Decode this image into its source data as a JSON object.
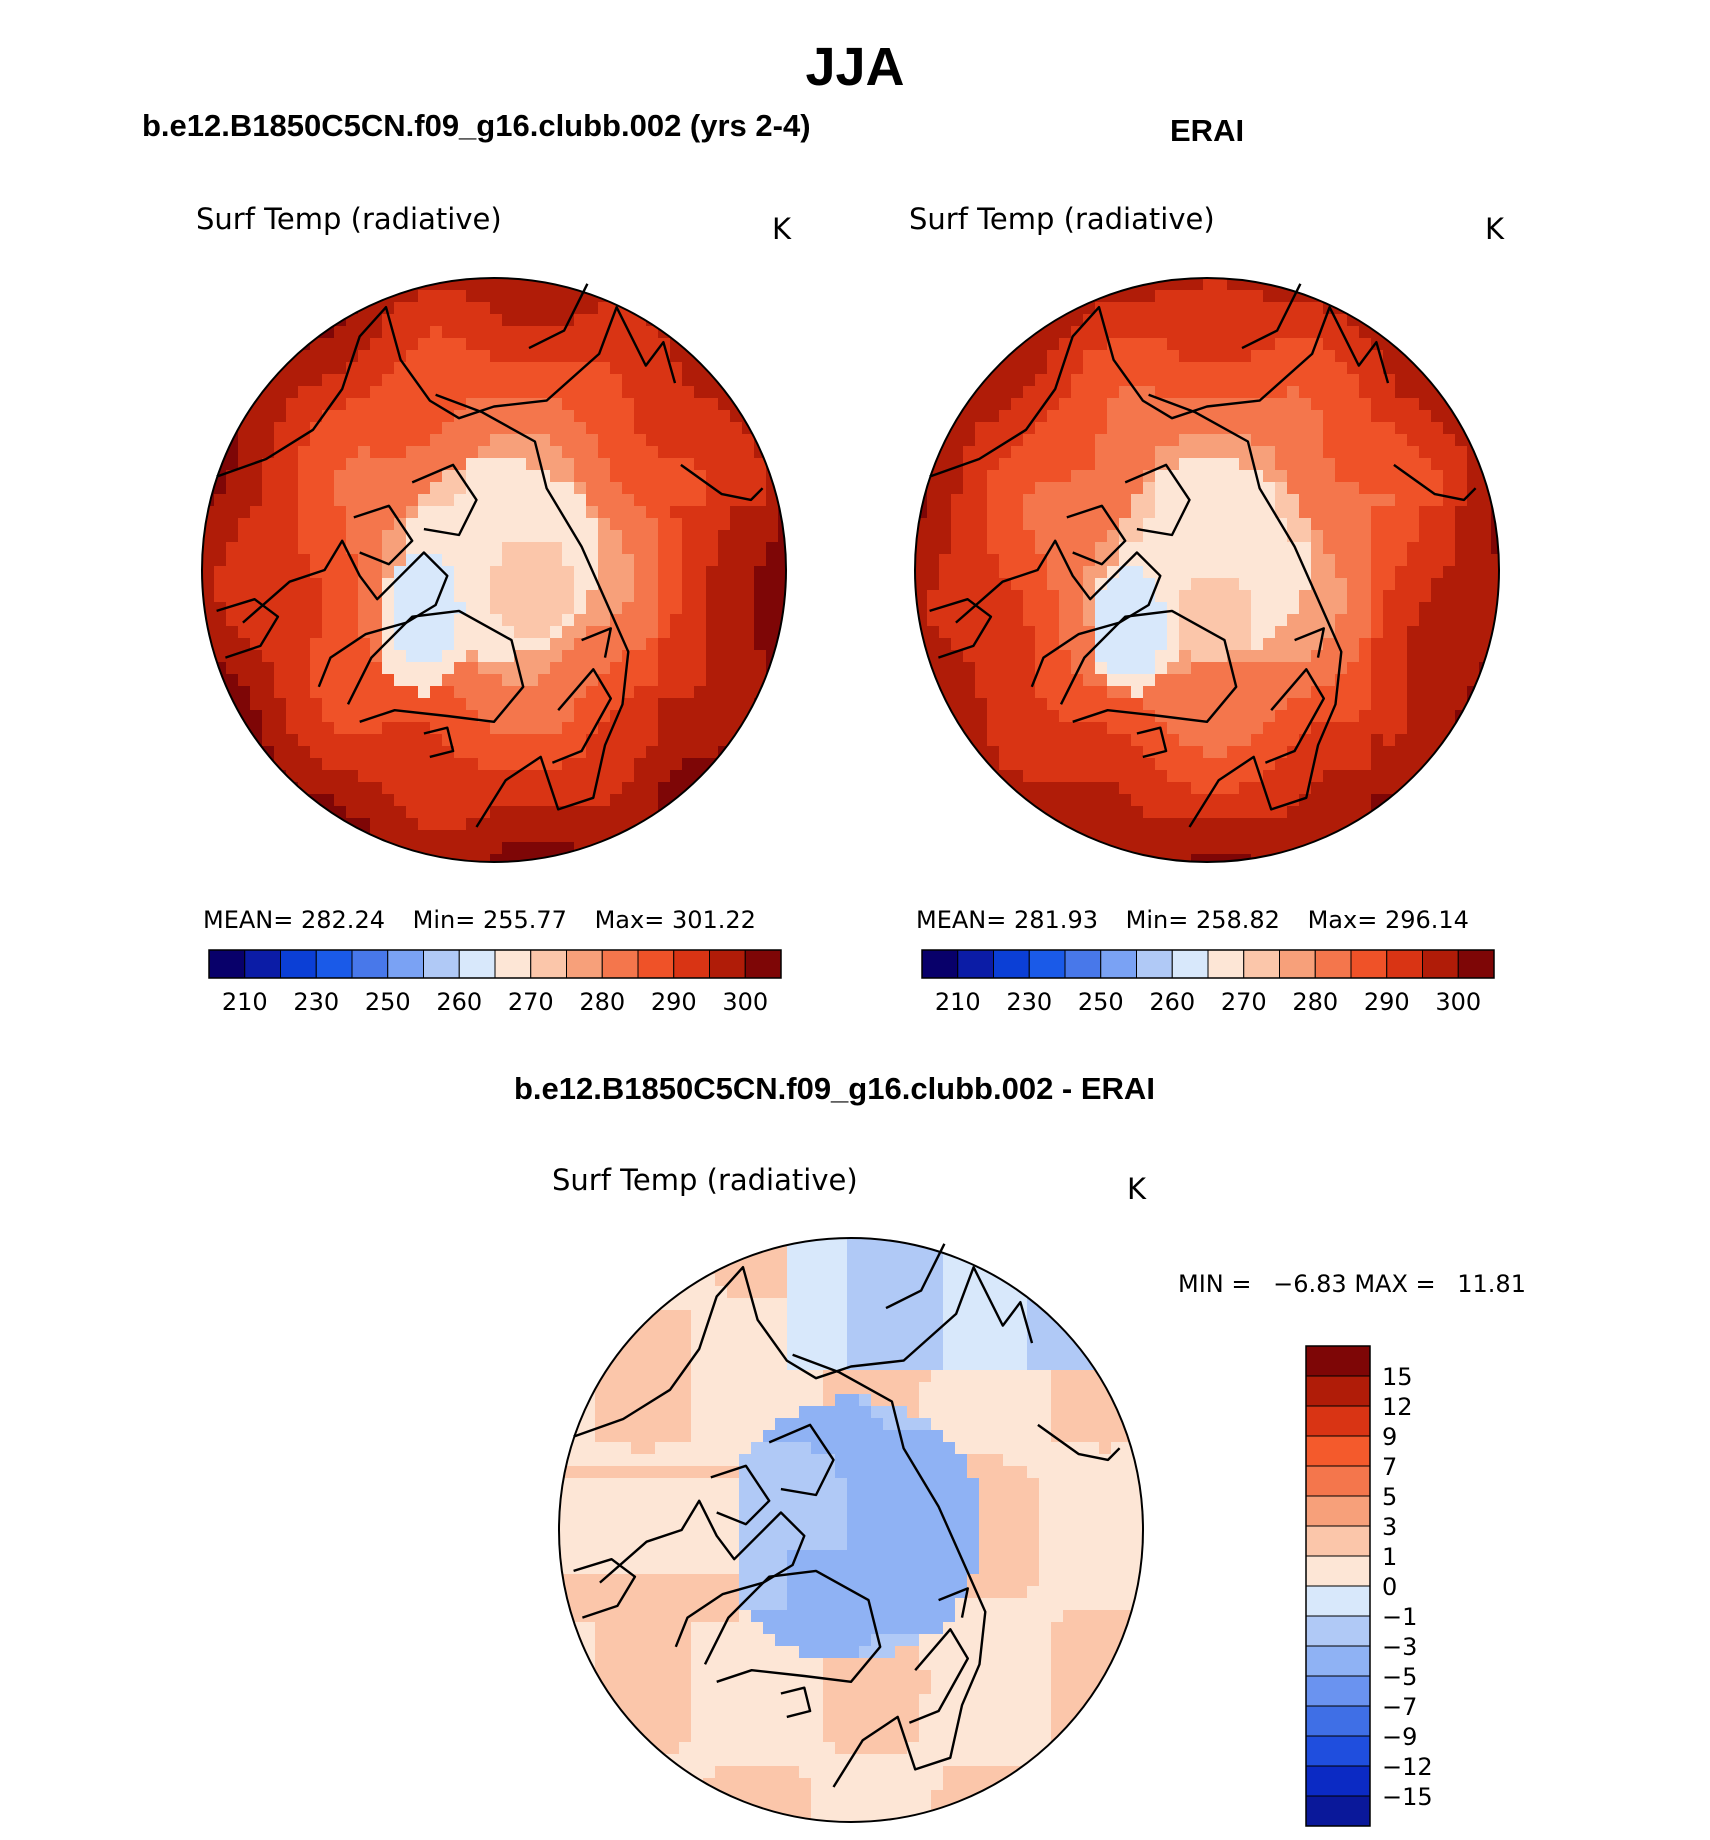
{
  "page_title": "JJA",
  "colors": {
    "model_levels": [
      "#08006a",
      "#0b1ca6",
      "#0b3fd6",
      "#1a5ae8",
      "#4878ea",
      "#7aa2f4",
      "#b0c9f6",
      "#d8e8fb",
      "#fde6d6",
      "#fbc6aa",
      "#f7a07a",
      "#f4764c",
      "#ef5228",
      "#d93414",
      "#b01c08",
      "#7e0606"
    ],
    "diff_levels": [
      "#7e0606",
      "#b01c08",
      "#d93414",
      "#f45a2c",
      "#f4764c",
      "#f7a07a",
      "#fbc6aa",
      "#fde6d6",
      "#d8e8fb",
      "#b0c9f6",
      "#8fb2f4",
      "#6a93f0",
      "#3f6fe6",
      "#1f4ede",
      "#0b2ac4",
      "#0a189a",
      "#08006a"
    ],
    "coast": "#000000"
  },
  "chart_data": [
    {
      "type": "heatmap",
      "projection": "north-polar-stereographic",
      "case_title": "b.e12.B1850C5CN.f09_g16.clubb.002 (yrs 2-4)",
      "variable": "Surf Temp (radiative)",
      "units": "K",
      "stats": {
        "mean_label": "MEAN=",
        "mean": "282.24",
        "min_label": "Min=",
        "min": "255.77",
        "max_label": "Max=",
        "max": "301.22"
      },
      "colorbar_ticks": [
        "210",
        "230",
        "250",
        "260",
        "270",
        "280",
        "290",
        "300"
      ]
    },
    {
      "type": "heatmap",
      "projection": "north-polar-stereographic",
      "case_title": "ERAI",
      "variable": "Surf Temp (radiative)",
      "units": "K",
      "stats": {
        "mean_label": "MEAN=",
        "mean": "281.93",
        "min_label": "Min=",
        "min": "258.82",
        "max_label": "Max=",
        "max": "296.14"
      },
      "colorbar_ticks": [
        "210",
        "230",
        "250",
        "260",
        "270",
        "280",
        "290",
        "300"
      ]
    },
    {
      "type": "heatmap",
      "projection": "north-polar-stereographic",
      "case_title": "b.e12.B1850C5CN.f09_g16.clubb.002 - ERAI",
      "variable": "Surf Temp (radiative)",
      "units": "K",
      "stats": {
        "min_label": "MIN =",
        "min": "−6.83",
        "max_label": "MAX =",
        "max": "11.81"
      },
      "colorbar_ticks": [
        "15",
        "12",
        "9",
        "7",
        "5",
        "3",
        "1",
        "0",
        "−1",
        "−3",
        "−5",
        "−7",
        "−9",
        "−12",
        "−15"
      ]
    }
  ]
}
